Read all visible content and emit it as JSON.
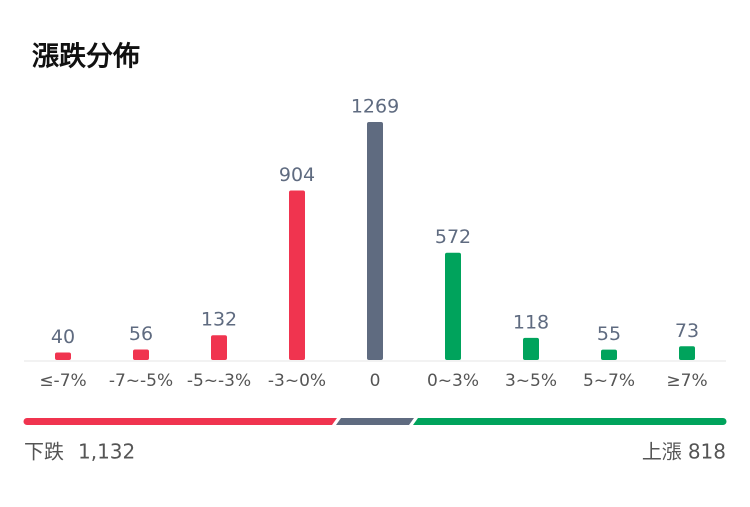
{
  "chart_data": {
    "type": "bar",
    "title": "漲跌分佈",
    "categories": [
      "≤-7%",
      "-7~-5%",
      "-5~-3%",
      "-3~0%",
      "0",
      "0~3%",
      "3~5%",
      "5~7%",
      "≥7%"
    ],
    "values": [
      40,
      56,
      132,
      904,
      1269,
      572,
      118,
      55,
      73
    ],
    "colors": [
      "#f0344f",
      "#f0344f",
      "#f0344f",
      "#f0344f",
      "#5f6b80",
      "#00a35c",
      "#00a35c",
      "#00a35c",
      "#00a35c"
    ],
    "summary": [
      {
        "name": "下跌",
        "value": 1132,
        "value_label": "1,132",
        "color": "#f0344f"
      },
      {
        "name": "上漲",
        "value": 818,
        "value_label": "818",
        "color": "#00a35c"
      }
    ],
    "neutral_color": "#5f6b80"
  }
}
